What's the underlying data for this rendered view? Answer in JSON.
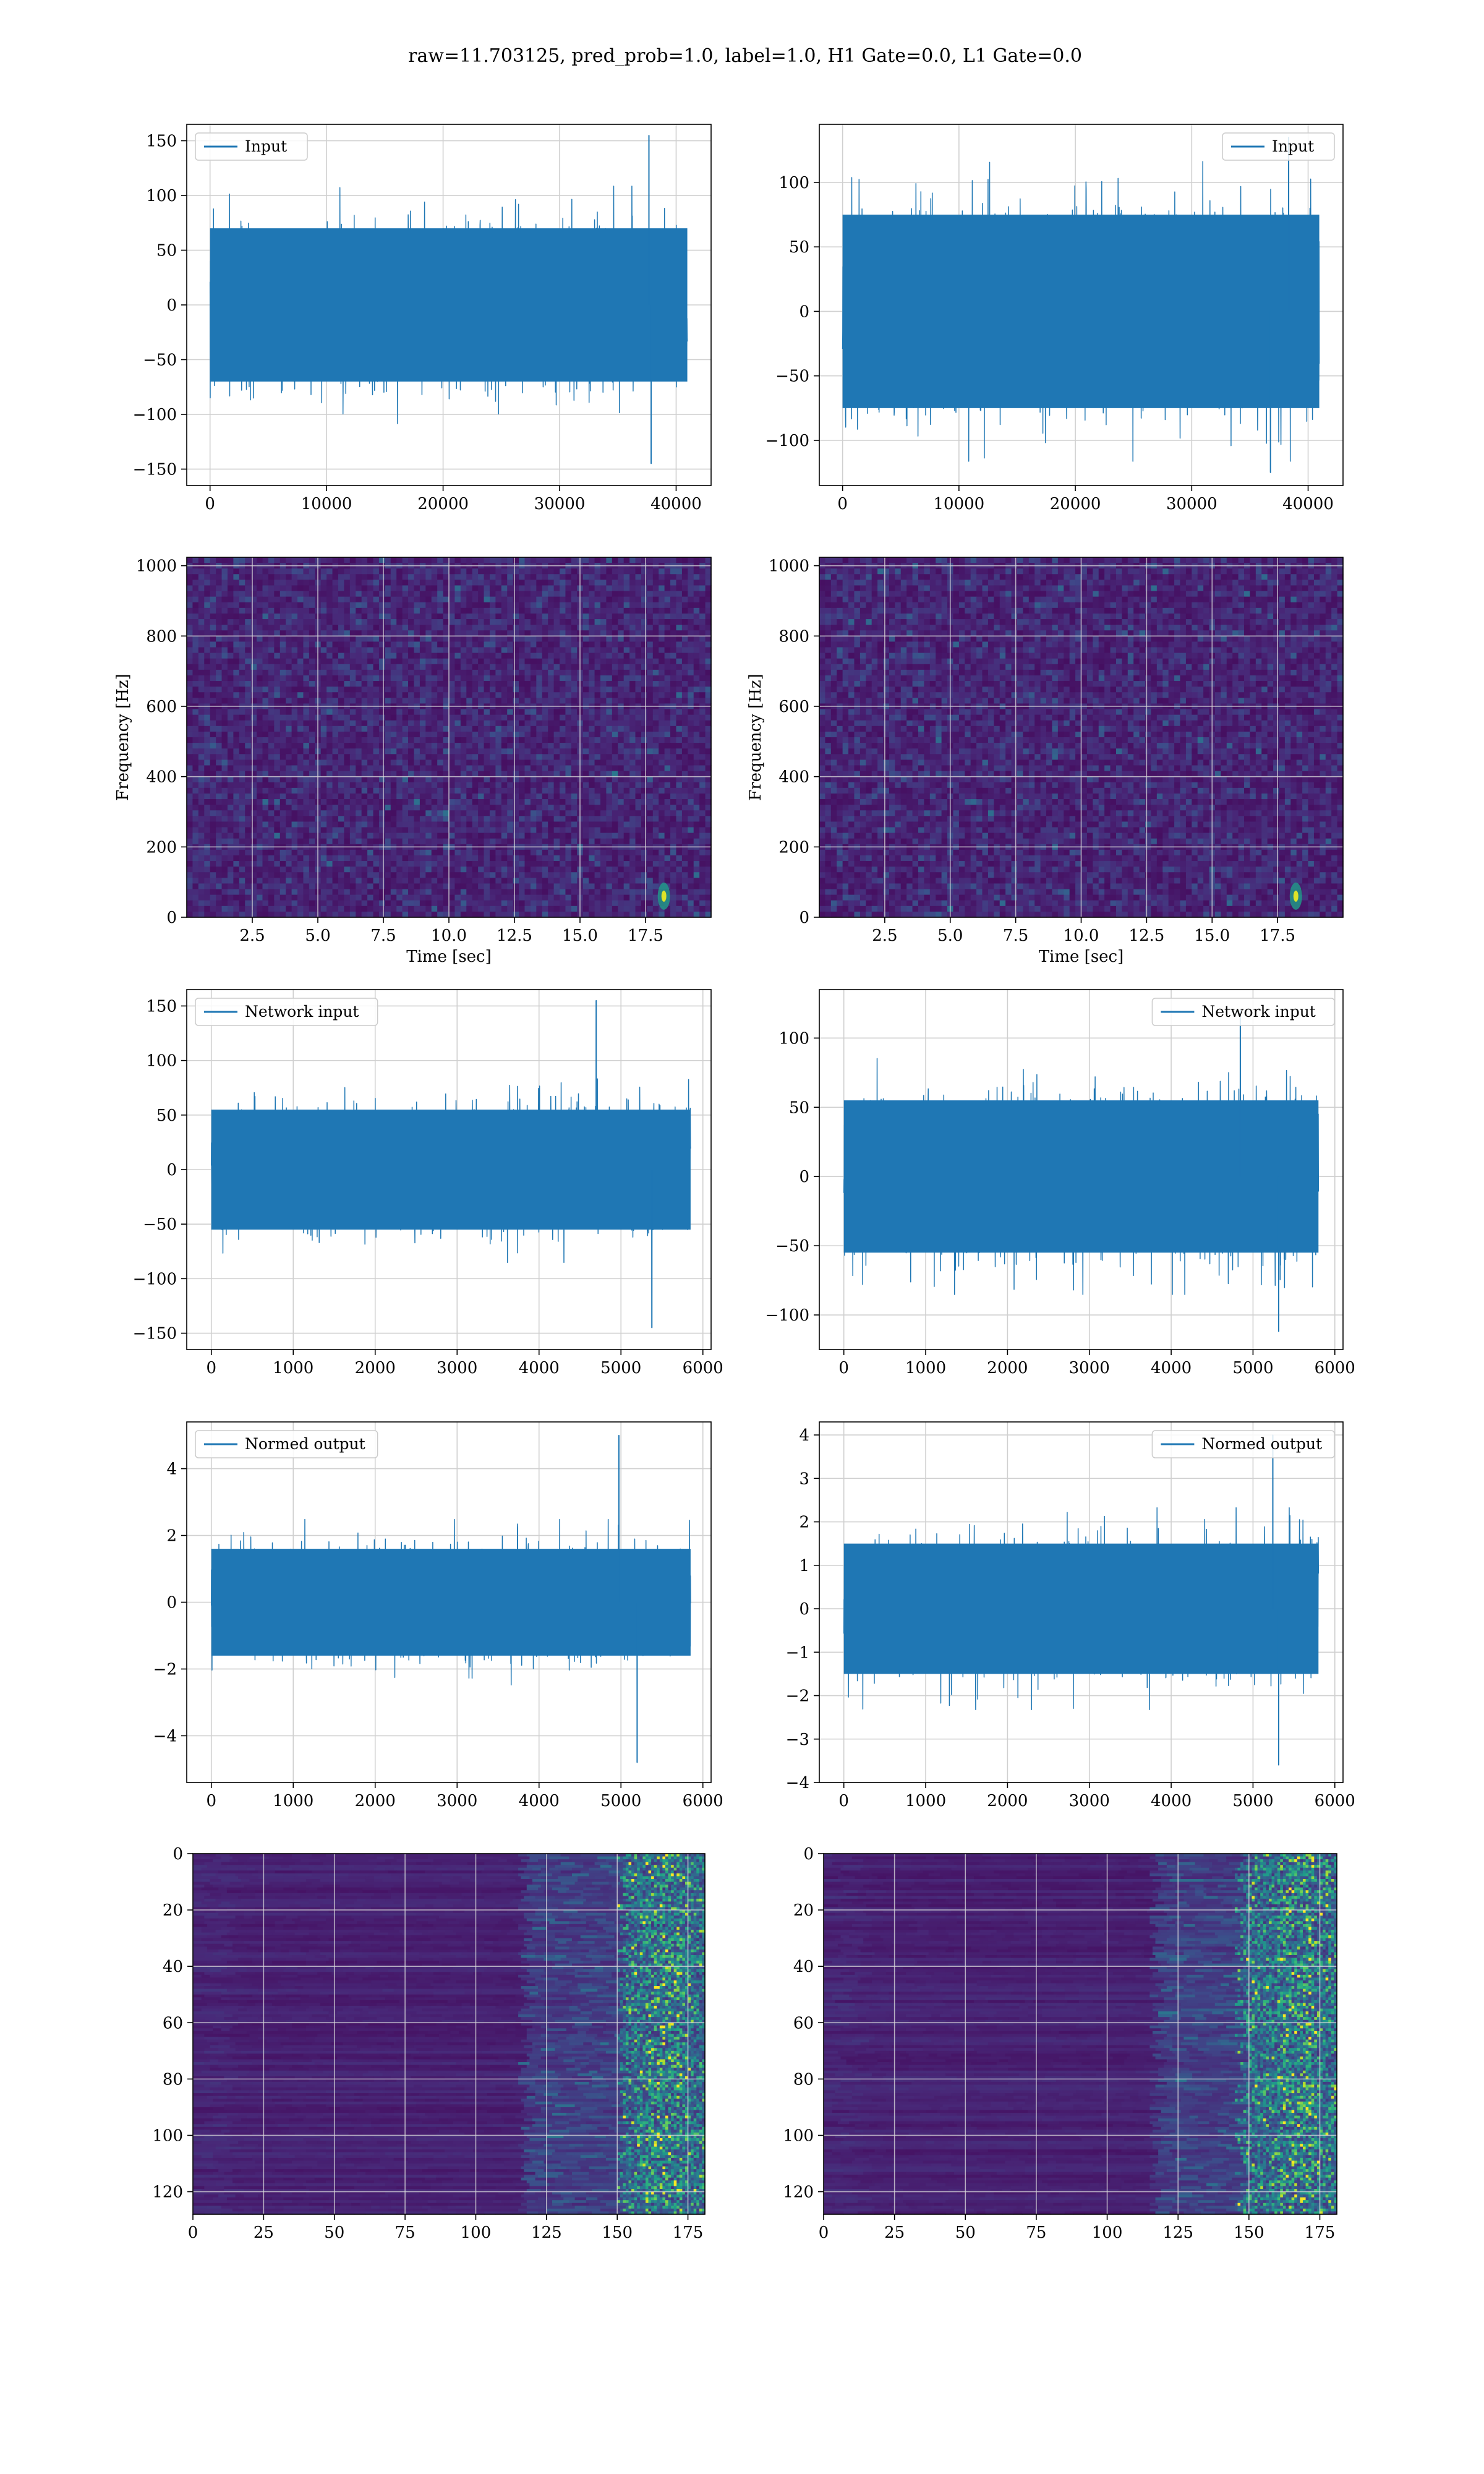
{
  "figure": {
    "title": "raw=11.703125, pred_prob=1.0, label=1.0, H1 Gate=0.0, L1 Gate=0.0",
    "colors": {
      "line": "#1f77b4",
      "grid": "#b0b0b0",
      "viridis_dark": "#440154",
      "viridis_mid": "#21918c",
      "viridis_bright": "#fde725"
    }
  },
  "chart_data": [
    {
      "type": "line",
      "panel": "r1c1",
      "legend": "Input",
      "legend_loc": "upper left",
      "xlim": [
        -2000,
        43000
      ],
      "ylim": [
        -165,
        165
      ],
      "xticks": [
        0,
        10000,
        20000,
        30000,
        40000
      ],
      "yticks": [
        -150,
        -100,
        -50,
        0,
        50,
        100,
        150
      ],
      "xticklabels": [
        "0",
        "10000",
        "20000",
        "30000",
        "40000"
      ],
      "yticklabels": [
        "−150",
        "−100",
        "−50",
        "0",
        "50",
        "100",
        "150"
      ],
      "x_range": [
        0,
        40960
      ],
      "envelope": [
        -70,
        70
      ],
      "extremes": {
        "min": -145,
        "max": 155
      },
      "grid": true
    },
    {
      "type": "line",
      "panel": "r1c2",
      "legend": "Input",
      "legend_loc": "upper right",
      "xlim": [
        -2000,
        43000
      ],
      "ylim": [
        -135,
        145
      ],
      "xticks": [
        0,
        10000,
        20000,
        30000,
        40000
      ],
      "yticks": [
        -100,
        -50,
        0,
        50,
        100
      ],
      "xticklabels": [
        "0",
        "10000",
        "20000",
        "30000",
        "40000"
      ],
      "yticklabels": [
        "−100",
        "−50",
        "0",
        "50",
        "100"
      ],
      "x_range": [
        0,
        40960
      ],
      "envelope": [
        -75,
        75
      ],
      "extremes": {
        "min": -125,
        "max": 135
      },
      "grid": true
    },
    {
      "type": "heatmap",
      "panel": "r2c1",
      "xlabel": "Time [sec]",
      "ylabel": "Frequency [Hz]",
      "xlim": [
        0,
        20
      ],
      "ylim": [
        0,
        1024
      ],
      "xticks": [
        2.5,
        5.0,
        7.5,
        10.0,
        12.5,
        15.0,
        17.5
      ],
      "yticks": [
        0,
        200,
        400,
        600,
        800,
        1000
      ],
      "xticklabels": [
        "2.5",
        "5.0",
        "7.5",
        "10.0",
        "12.5",
        "15.0",
        "17.5"
      ],
      "yticklabels": [
        "0",
        "200",
        "400",
        "600",
        "800",
        "1000"
      ],
      "colormap": "viridis",
      "hotspot": {
        "t": 18.2,
        "f": 60
      },
      "grid": true
    },
    {
      "type": "heatmap",
      "panel": "r2c2",
      "xlabel": "Time [sec]",
      "ylabel": "Frequency [Hz]",
      "xlim": [
        0,
        20
      ],
      "ylim": [
        0,
        1024
      ],
      "xticks": [
        2.5,
        5.0,
        7.5,
        10.0,
        12.5,
        15.0,
        17.5
      ],
      "yticks": [
        0,
        200,
        400,
        600,
        800,
        1000
      ],
      "xticklabels": [
        "2.5",
        "5.0",
        "7.5",
        "10.0",
        "12.5",
        "15.0",
        "17.5"
      ],
      "yticklabels": [
        "0",
        "200",
        "400",
        "600",
        "800",
        "1000"
      ],
      "colormap": "viridis",
      "hotspot": {
        "t": 18.2,
        "f": 60
      },
      "grid": true
    },
    {
      "type": "line",
      "panel": "r3c1",
      "legend": "Network input",
      "legend_loc": "upper left",
      "xlim": [
        -300,
        6100
      ],
      "ylim": [
        -165,
        165
      ],
      "xticks": [
        0,
        1000,
        2000,
        3000,
        4000,
        5000,
        6000
      ],
      "yticks": [
        -150,
        -100,
        -50,
        0,
        50,
        100,
        150
      ],
      "xticklabels": [
        "0",
        "1000",
        "2000",
        "3000",
        "4000",
        "5000",
        "6000"
      ],
      "yticklabels": [
        "−150",
        "−100",
        "−50",
        "0",
        "50",
        "100",
        "150"
      ],
      "x_range": [
        0,
        5850
      ],
      "envelope": [
        -55,
        55
      ],
      "extremes": {
        "min": -145,
        "max": 155
      },
      "grid": true
    },
    {
      "type": "line",
      "panel": "r3c2",
      "legend": "Network input",
      "legend_loc": "upper right",
      "xlim": [
        -300,
        6100
      ],
      "ylim": [
        -125,
        135
      ],
      "xticks": [
        0,
        1000,
        2000,
        3000,
        4000,
        5000,
        6000
      ],
      "yticks": [
        -100,
        -50,
        0,
        50,
        100
      ],
      "xticklabels": [
        "0",
        "1000",
        "2000",
        "3000",
        "4000",
        "5000",
        "6000"
      ],
      "yticklabels": [
        "−100",
        "−50",
        "0",
        "50",
        "100"
      ],
      "x_range": [
        0,
        5800
      ],
      "envelope": [
        -55,
        55
      ],
      "extremes": {
        "min": -112,
        "max": 120
      },
      "grid": true
    },
    {
      "type": "line",
      "panel": "r4c1",
      "legend": "Normed output",
      "legend_loc": "upper left",
      "xlim": [
        -300,
        6100
      ],
      "ylim": [
        -5.4,
        5.4
      ],
      "xticks": [
        0,
        1000,
        2000,
        3000,
        4000,
        5000,
        6000
      ],
      "yticks": [
        -4,
        -2,
        0,
        2,
        4
      ],
      "xticklabels": [
        "0",
        "1000",
        "2000",
        "3000",
        "4000",
        "5000",
        "6000"
      ],
      "yticklabels": [
        "−4",
        "−2",
        "0",
        "2",
        "4"
      ],
      "x_range": [
        0,
        5850
      ],
      "envelope": [
        -1.6,
        1.6
      ],
      "extremes": {
        "min": -4.8,
        "max": 5.0
      },
      "grid": true
    },
    {
      "type": "line",
      "panel": "r4c2",
      "legend": "Normed output",
      "legend_loc": "upper right",
      "xlim": [
        -300,
        6100
      ],
      "ylim": [
        -4.0,
        4.3
      ],
      "xticks": [
        0,
        1000,
        2000,
        3000,
        4000,
        5000,
        6000
      ],
      "yticks": [
        -4,
        -3,
        -2,
        -1,
        0,
        1,
        2,
        3,
        4
      ],
      "xticklabels": [
        "0",
        "1000",
        "2000",
        "3000",
        "4000",
        "5000",
        "6000"
      ],
      "yticklabels": [
        "−4",
        "−3",
        "−2",
        "−1",
        "0",
        "1",
        "2",
        "3",
        "4"
      ],
      "x_range": [
        0,
        5800
      ],
      "envelope": [
        -1.5,
        1.5
      ],
      "extremes": {
        "min": -3.6,
        "max": 4.0
      },
      "grid": true
    },
    {
      "type": "heatmap",
      "panel": "r5c1",
      "xlim": [
        0,
        181
      ],
      "ylim": [
        128,
        0
      ],
      "xticks": [
        0,
        25,
        50,
        75,
        100,
        125,
        150,
        175
      ],
      "yticks": [
        0,
        20,
        40,
        60,
        80,
        100,
        120
      ],
      "xticklabels": [
        "0",
        "25",
        "50",
        "75",
        "100",
        "125",
        "150",
        "175"
      ],
      "yticklabels": [
        "0",
        "20",
        "40",
        "60",
        "80",
        "100",
        "120"
      ],
      "colormap": "viridis",
      "active_band": [
        150,
        181
      ],
      "grid": true
    },
    {
      "type": "heatmap",
      "panel": "r5c2",
      "xlim": [
        0,
        181
      ],
      "ylim": [
        128,
        0
      ],
      "xticks": [
        0,
        25,
        50,
        75,
        100,
        125,
        150,
        175
      ],
      "yticks": [
        0,
        20,
        40,
        60,
        80,
        100,
        120
      ],
      "xticklabels": [
        "0",
        "25",
        "50",
        "75",
        "100",
        "125",
        "150",
        "175"
      ],
      "yticklabels": [
        "0",
        "20",
        "40",
        "60",
        "80",
        "100",
        "120"
      ],
      "colormap": "viridis",
      "active_band": [
        145,
        181
      ],
      "grid": true
    }
  ]
}
